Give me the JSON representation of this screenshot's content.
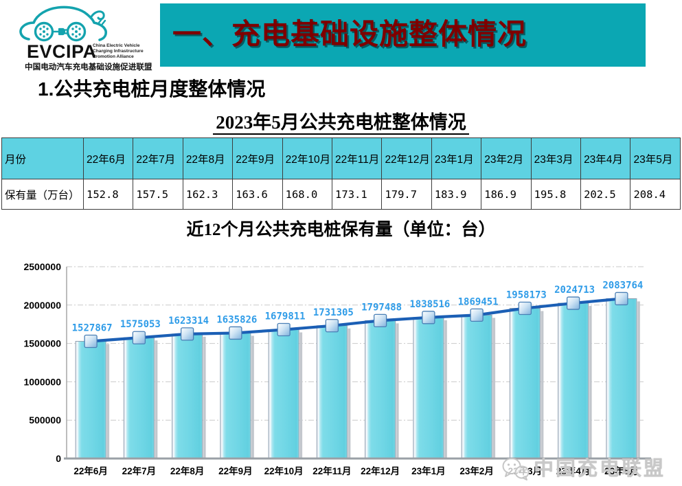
{
  "logo": {
    "acronym": "EVCIPA",
    "subtitle_lines": [
      "China Electric Vehicle",
      "Charging Infrastructure",
      "Promotion Alliance"
    ],
    "chinese_name": "中国电动汽车充电基础设施促进联盟",
    "brand_color": "#14a3ae"
  },
  "banner": {
    "title": "一、充电基础设施整体情况",
    "bg_color": "#0ba7b3",
    "text_color": "#7e0000"
  },
  "section_heading": "1.公共充电桩月度整体情况",
  "table": {
    "title": "2023年5月公共充电桩整体情况",
    "header_bg": "#5ed2e2",
    "headers": [
      "月份",
      "22年6月",
      "22年7月",
      "22年8月",
      "22年9月",
      "22年10月",
      "22年11月",
      "22年12月",
      "23年1月",
      "23年2月",
      "23年3月",
      "23年4月",
      "23年5月"
    ],
    "row_label": "保有量（万台）",
    "values": [
      "152.8",
      "157.5",
      "162.3",
      "163.6",
      "168.0",
      "173.1",
      "179.7",
      "183.9",
      "186.9",
      "195.8",
      "202.5",
      "208.4"
    ]
  },
  "chart_data": {
    "type": "bar",
    "overlay_line": true,
    "title": "近12个月公共充电桩保有量（单位：台）",
    "categories": [
      "22年6月",
      "22年7月",
      "22年8月",
      "22年9月",
      "22年10月",
      "22年11月",
      "22年12月",
      "23年1月",
      "23年2月",
      "23年3月",
      "23年4月",
      "23年5月"
    ],
    "values": [
      1527867,
      1575053,
      1623314,
      1635826,
      1679811,
      1731305,
      1797488,
      1838516,
      1869451,
      1958173,
      2024713,
      2083764
    ],
    "xlabel": "",
    "ylabel": "",
    "ylim": [
      0,
      2500000
    ],
    "ytick_step": 500000,
    "grid": true,
    "legend": false,
    "bar_color": "#70d7e5",
    "line_color": "#1b5fb5",
    "label_color": "#2f9ce8"
  },
  "watermark": {
    "text": "中国充电联盟"
  }
}
